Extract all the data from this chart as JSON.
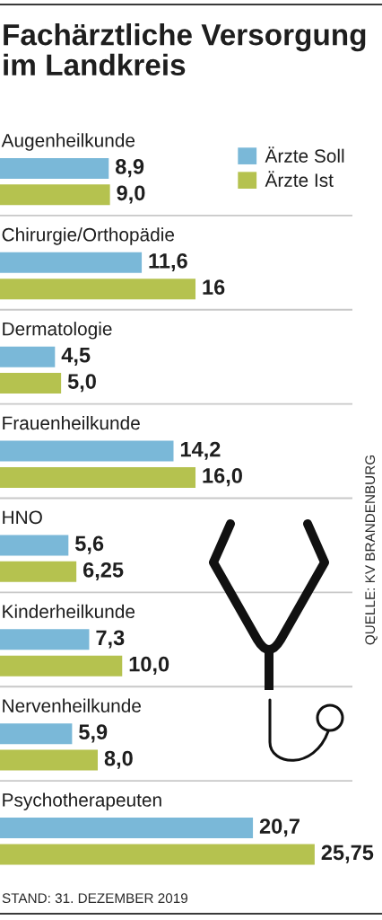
{
  "chart_data": {
    "type": "bar",
    "orientation": "horizontal",
    "title": "Fachärztliche Versorgung im Landkreis",
    "categories": [
      "Augenheilkunde",
      "Chirurgie/Orthopädie",
      "Dermatologie",
      "Frauenheilkunde",
      "HNO",
      "Kinderheilkunde",
      "Nervenheilkunde",
      "Psychotherapeuten"
    ],
    "series": [
      {
        "name": "Ärzte Soll",
        "color": "#7ab8d8",
        "values": [
          8.9,
          11.6,
          4.5,
          14.2,
          5.6,
          7.3,
          5.9,
          20.7
        ],
        "value_labels": [
          "8,9",
          "11,6",
          "4,5",
          "14,2",
          "5,6",
          "7,3",
          "5,9",
          "20,7"
        ]
      },
      {
        "name": "Ärzte Ist",
        "color": "#b5c24f",
        "values": [
          9.0,
          16,
          5.0,
          16.0,
          6.25,
          10.0,
          8.0,
          25.75
        ],
        "value_labels": [
          "9,0",
          "16",
          "5,0",
          "16,0",
          "6,25",
          "10,0",
          "8,0",
          "25,75"
        ]
      }
    ],
    "legend": "top right",
    "grid": "y",
    "tick_labels": "y",
    "annotations": [
      "QUELLE: KV BRANDENBURG",
      "STAND: 31. DEZEMBER 2019"
    ]
  }
}
